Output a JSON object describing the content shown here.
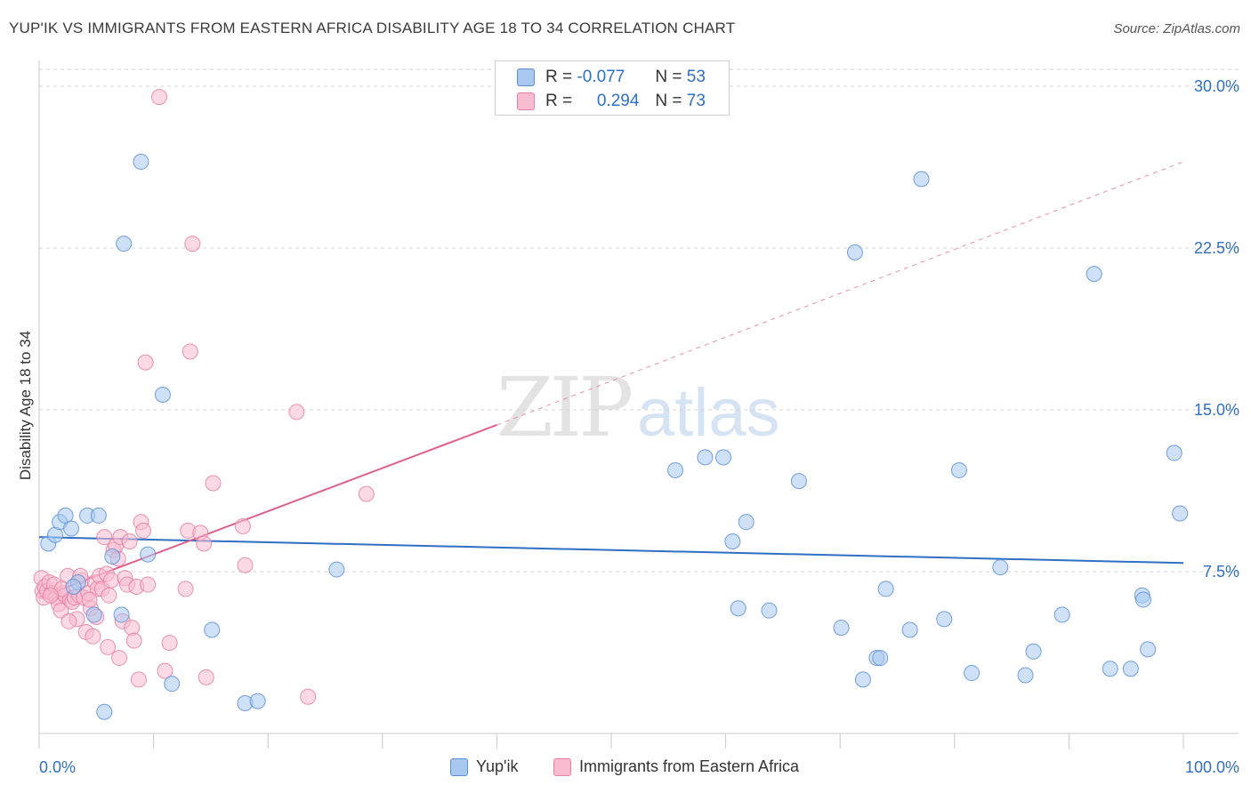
{
  "title": "YUP'IK VS IMMIGRANTS FROM EASTERN AFRICA DISABILITY AGE 18 TO 34 CORRELATION CHART",
  "source": "Source: ZipAtlas.com",
  "watermark": {
    "zip": "ZIP",
    "atlas": "atlas"
  },
  "legend_top": {
    "rows": [
      {
        "r_label": "R =",
        "r_value": "-0.077",
        "n_label": "N =",
        "n_value": "53"
      },
      {
        "r_label": "R =",
        "r_value": "0.294",
        "n_label": "N =",
        "n_value": "73"
      }
    ]
  },
  "legend_bottom": {
    "series1": "Yup'ik",
    "series2": "Immigrants from Eastern Africa"
  },
  "colors": {
    "blue_fill": "#a8c8f0",
    "blue_stroke": "#5b8fd6",
    "blue_line": "#2f6fc4",
    "pink_fill": "#f7bcd0",
    "pink_stroke": "#e87fa3",
    "pink_line": "#e0608d",
    "grid": "#d5d5d5",
    "tick_label": "#2f6fc4"
  },
  "chart_data": {
    "type": "scatter",
    "title": "YUP'IK VS IMMIGRANTS FROM EASTERN AFRICA DISABILITY AGE 18 TO 34 CORRELATION CHART",
    "xlabel": "",
    "ylabel": "Disability Age 18 to 34",
    "xlim": [
      0,
      100
    ],
    "ylim": [
      0,
      31.5
    ],
    "x_tick_labels": [
      "0.0%",
      "100.0%"
    ],
    "y_ticks": [
      7.5,
      15.0,
      22.5,
      30.0
    ],
    "y_tick_labels": [
      "7.5%",
      "15.0%",
      "22.5%",
      "30.0%"
    ],
    "grid": true,
    "legend": "bottom-center",
    "series": [
      {
        "name": "Yup'ik",
        "R": -0.077,
        "N": 53,
        "trend": {
          "x0": 0,
          "y0": 9.1,
          "x1": 100,
          "y1": 7.9,
          "dashed_to": null
        },
        "points": [
          [
            0.8,
            8.8
          ],
          [
            1.4,
            9.2
          ],
          [
            1.8,
            9.8
          ],
          [
            2.3,
            10.1
          ],
          [
            2.8,
            9.5
          ],
          [
            3.4,
            7.0
          ],
          [
            4.2,
            10.1
          ],
          [
            4.8,
            5.5
          ],
          [
            5.2,
            10.1
          ],
          [
            5.7,
            1.0
          ],
          [
            6.4,
            8.2
          ],
          [
            7.4,
            22.7
          ],
          [
            8.9,
            26.5
          ],
          [
            9.5,
            8.3
          ],
          [
            10.8,
            15.7
          ],
          [
            11.6,
            2.3
          ],
          [
            15.1,
            4.8
          ],
          [
            18.0,
            1.4
          ],
          [
            19.1,
            1.5
          ],
          [
            26.0,
            7.6
          ],
          [
            55.6,
            12.2
          ],
          [
            58.2,
            12.8
          ],
          [
            59.8,
            12.8
          ],
          [
            60.6,
            8.9
          ],
          [
            61.1,
            5.8
          ],
          [
            61.8,
            9.8
          ],
          [
            63.8,
            5.7
          ],
          [
            66.4,
            11.7
          ],
          [
            70.1,
            4.9
          ],
          [
            71.3,
            22.3
          ],
          [
            72.0,
            2.5
          ],
          [
            73.2,
            3.5
          ],
          [
            73.5,
            3.5
          ],
          [
            74.0,
            6.7
          ],
          [
            76.1,
            4.8
          ],
          [
            77.1,
            25.7
          ],
          [
            79.1,
            5.3
          ],
          [
            80.4,
            12.2
          ],
          [
            81.5,
            2.8
          ],
          [
            84.0,
            7.7
          ],
          [
            86.2,
            2.7
          ],
          [
            86.9,
            3.8
          ],
          [
            89.4,
            5.5
          ],
          [
            92.2,
            21.3
          ],
          [
            93.6,
            3.0
          ],
          [
            95.4,
            3.0
          ],
          [
            96.4,
            6.4
          ],
          [
            96.5,
            6.2
          ],
          [
            96.9,
            3.9
          ],
          [
            99.2,
            13.0
          ],
          [
            99.7,
            10.2
          ],
          [
            7.2,
            5.5
          ],
          [
            3.0,
            6.8
          ]
        ]
      },
      {
        "name": "Immigrants from Eastern Africa",
        "R": 0.294,
        "N": 73,
        "trend": {
          "x0": 0,
          "y0": 6.3,
          "x1": 40,
          "y1": 14.3,
          "dashed_to": {
            "x": 100,
            "y": 26.5
          }
        },
        "points": [
          [
            0.2,
            7.2
          ],
          [
            0.3,
            6.6
          ],
          [
            0.4,
            6.3
          ],
          [
            0.5,
            6.8
          ],
          [
            0.7,
            6.6
          ],
          [
            0.9,
            7.0
          ],
          [
            1.1,
            6.5
          ],
          [
            1.3,
            6.9
          ],
          [
            1.5,
            6.3
          ],
          [
            1.7,
            6.0
          ],
          [
            1.9,
            5.7
          ],
          [
            2.1,
            6.5
          ],
          [
            2.3,
            6.4
          ],
          [
            2.5,
            7.3
          ],
          [
            2.7,
            6.2
          ],
          [
            2.9,
            6.1
          ],
          [
            3.1,
            6.3
          ],
          [
            3.3,
            5.3
          ],
          [
            3.5,
            6.4
          ],
          [
            3.7,
            7.1
          ],
          [
            3.9,
            6.3
          ],
          [
            4.1,
            4.7
          ],
          [
            4.3,
            6.5
          ],
          [
            4.5,
            5.8
          ],
          [
            4.7,
            4.5
          ],
          [
            4.9,
            7.0
          ],
          [
            5.1,
            6.7
          ],
          [
            5.3,
            7.3
          ],
          [
            5.5,
            6.7
          ],
          [
            5.7,
            9.1
          ],
          [
            5.9,
            7.4
          ],
          [
            6.1,
            6.4
          ],
          [
            6.3,
            7.1
          ],
          [
            6.5,
            8.5
          ],
          [
            6.7,
            8.7
          ],
          [
            6.9,
            8.1
          ],
          [
            7.1,
            9.1
          ],
          [
            7.3,
            5.2
          ],
          [
            7.5,
            7.2
          ],
          [
            7.7,
            6.9
          ],
          [
            7.9,
            8.9
          ],
          [
            8.1,
            4.9
          ],
          [
            8.3,
            4.3
          ],
          [
            8.5,
            6.8
          ],
          [
            8.7,
            2.5
          ],
          [
            8.9,
            9.8
          ],
          [
            9.1,
            9.4
          ],
          [
            9.3,
            17.2
          ],
          [
            9.5,
            6.9
          ],
          [
            10.5,
            29.5
          ],
          [
            11.0,
            2.9
          ],
          [
            11.4,
            4.2
          ],
          [
            12.8,
            6.7
          ],
          [
            13.0,
            9.4
          ],
          [
            13.2,
            17.7
          ],
          [
            13.4,
            22.7
          ],
          [
            14.1,
            9.3
          ],
          [
            14.4,
            8.8
          ],
          [
            14.6,
            2.6
          ],
          [
            15.2,
            11.6
          ],
          [
            17.8,
            9.6
          ],
          [
            18.0,
            7.8
          ],
          [
            22.5,
            14.9
          ],
          [
            23.5,
            1.7
          ],
          [
            28.6,
            11.1
          ],
          [
            2.0,
            6.7
          ],
          [
            3.6,
            7.3
          ],
          [
            5.0,
            5.4
          ],
          [
            6.0,
            4.0
          ],
          [
            7.0,
            3.5
          ],
          [
            1.0,
            6.4
          ],
          [
            2.6,
            5.2
          ],
          [
            4.4,
            6.2
          ]
        ]
      }
    ]
  }
}
